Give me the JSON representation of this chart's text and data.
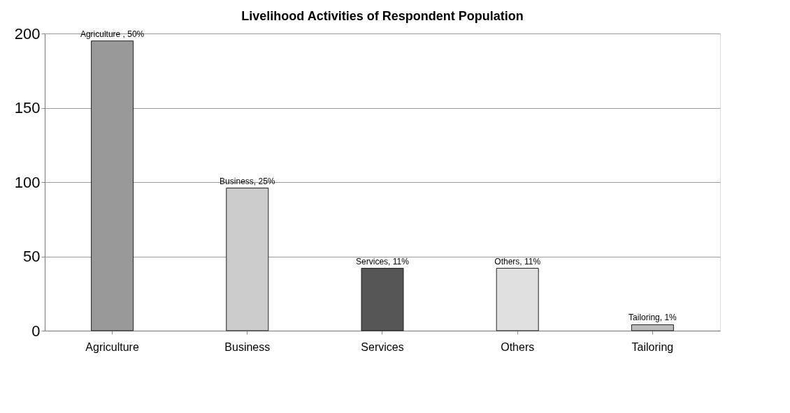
{
  "chart_data": {
    "type": "bar",
    "title": "Livelihood Activities of Respondent Population",
    "categories": [
      "Agriculture",
      "Business",
      "Services",
      "Others",
      "Tailoring"
    ],
    "values": [
      195,
      96,
      42,
      42,
      4
    ],
    "colors": [
      "#999999",
      "#cccccc",
      "#555555",
      "#e0e0e0",
      "#bbbbbb"
    ],
    "annotations": [
      {
        "text": "Agriculture , 50%",
        "x": "Agriculture",
        "y": 195
      },
      {
        "text": "Business, 25%",
        "x": "Business",
        "y": 96
      },
      {
        "text": "Services, 11%",
        "x": "Services",
        "y": 42
      },
      {
        "text": "Others, 11%",
        "x": "Others",
        "y": 42
      },
      {
        "text": "Tailoring, 1%",
        "x": "Tailoring",
        "y": 4
      }
    ],
    "ylim": [
      0,
      200
    ],
    "yticks": [
      0,
      50,
      100,
      150,
      200
    ],
    "grid": "y"
  }
}
